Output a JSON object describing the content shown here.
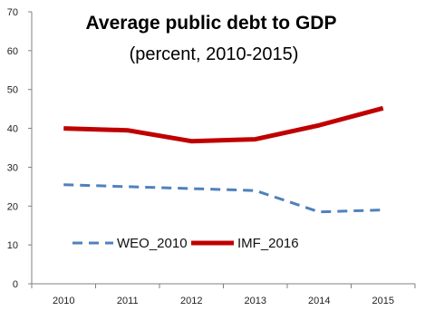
{
  "chart_data": {
    "type": "line",
    "title": "Average public debt to GDP",
    "subtitle": "(percent, 2010-2015)",
    "xlabel": "",
    "ylabel": "",
    "categories": [
      "2010",
      "2011",
      "2012",
      "2013",
      "2014",
      "2015"
    ],
    "ylim": [
      0,
      70
    ],
    "yticks": [
      "0",
      "10",
      "20",
      "30",
      "40",
      "50",
      "60",
      "70"
    ],
    "grid": false,
    "legend_position": "lower-left",
    "series": [
      {
        "name": "WEO_2010",
        "values": [
          25.5,
          25.0,
          24.5,
          24.0,
          18.5,
          19.0
        ],
        "color": "#4f81bd",
        "style": "dashed"
      },
      {
        "name": "IMF_2016",
        "values": [
          40.0,
          39.5,
          36.7,
          37.2,
          40.8,
          45.2
        ],
        "color": "#c00000",
        "style": "solid"
      }
    ]
  }
}
